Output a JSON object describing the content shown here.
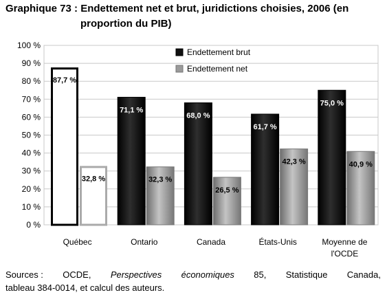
{
  "title_line1": "Graphique 73 : Endettement net et brut, juridictions choisies, 2006 (en",
  "title_line2": "proportion du PIB)",
  "source": {
    "part1": "Sources :",
    "part2": "OCDE,",
    "part3": "Perspectives",
    "part4": "économiques",
    "part5": "85,",
    "part6": "Statistique",
    "part7": "Canada,",
    "line2": "tableau 384-0014, et calcul des auteurs."
  },
  "colors": {
    "gross": "#111111",
    "net": "#9a9a9a",
    "quebec_fill": "#ffffff",
    "quebec_gross_stroke": "#000000",
    "quebec_net_stroke": "#aaaaaa"
  },
  "chart_data": {
    "type": "bar",
    "categories": [
      "Québec",
      "Ontario",
      "Canada",
      "États-Unis",
      "Moyenne de l'OCDE"
    ],
    "category_lines": [
      [
        "Québec"
      ],
      [
        "Ontario"
      ],
      [
        "Canada"
      ],
      [
        "États-Unis"
      ],
      [
        "Moyenne de",
        "l'OCDE"
      ]
    ],
    "series": [
      {
        "name": "Endettement brut",
        "values": [
          87.7,
          71.1,
          68.0,
          61.7,
          75.0
        ],
        "labels": [
          "87,7 %",
          "71,1 %",
          "68,0 %",
          "61,7 %",
          "75,0 %"
        ]
      },
      {
        "name": "Endettement net",
        "values": [
          32.8,
          32.3,
          26.5,
          42.3,
          40.9
        ],
        "labels": [
          "32,8 %",
          "32,3 %",
          "26,5 %",
          "42,3 %",
          "40,9 %"
        ]
      }
    ],
    "yticks": [
      "0 %",
      "10 %",
      "20 %",
      "30 %",
      "40 %",
      "50 %",
      "60 %",
      "70 %",
      "80 %",
      "90 %",
      "100 %"
    ],
    "ylim": [
      0,
      100
    ],
    "grid": true,
    "legend": "top-right"
  }
}
